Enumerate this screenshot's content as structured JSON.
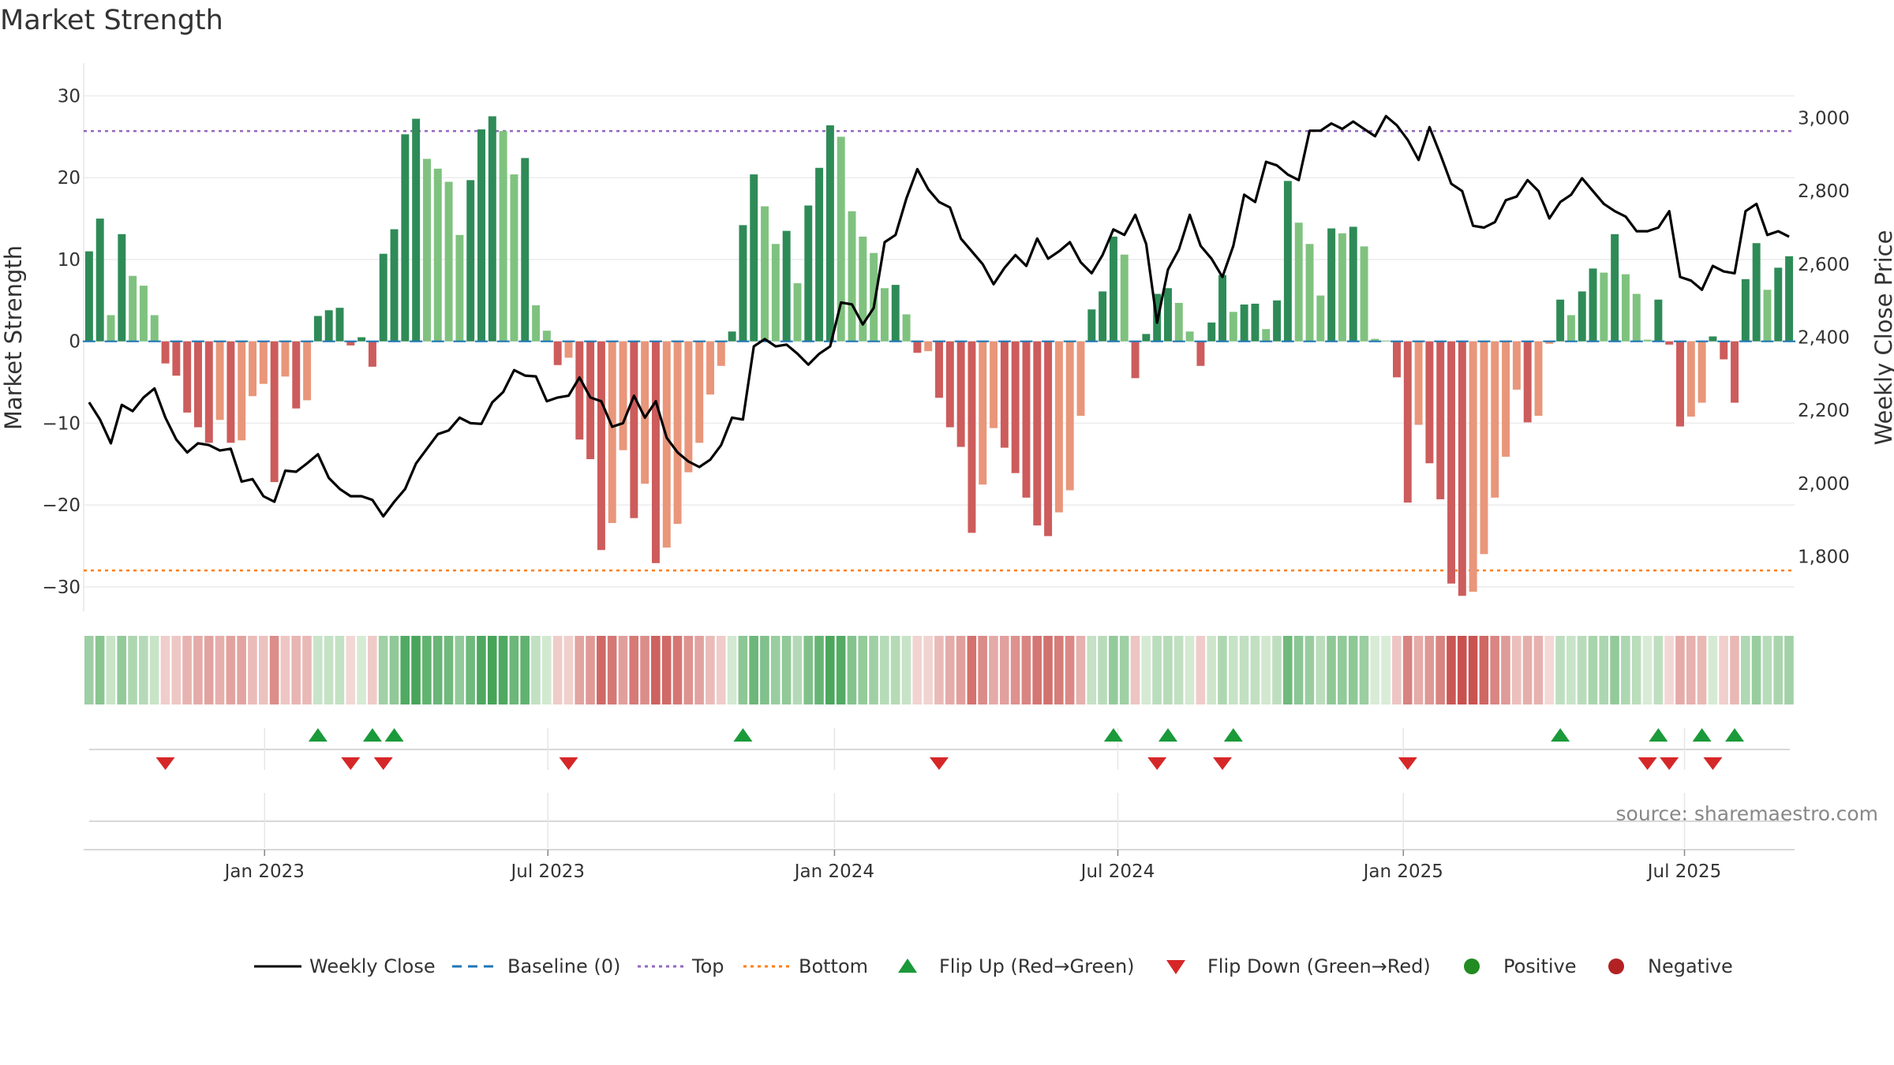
{
  "chart_data": {
    "type": "bar",
    "title": "Market Strength",
    "ylabel": "Market Strength",
    "y2label": "Weekly Close Price",
    "ylim": [
      -33,
      34
    ],
    "y2lim": [
      1650,
      3150
    ],
    "yticks": [
      30,
      20,
      10,
      0,
      -10,
      -20,
      -30
    ],
    "ytick_labels": [
      "30",
      "20",
      "10",
      "0",
      "−10",
      "−20",
      "−30"
    ],
    "y2ticks": [
      3000,
      2800,
      2600,
      2400,
      2200,
      2000,
      1800
    ],
    "y2tick_labels": [
      "3,000",
      "2,800",
      "2,600",
      "2,400",
      "2,200",
      "2,000",
      "1,800"
    ],
    "xtick_labels": [
      "Jan 2023",
      "Jul 2023",
      "Jan 2024",
      "Jul 2024",
      "Jan 2025",
      "Jul 2025"
    ],
    "xtick_positions": [
      16.6,
      42.6,
      68.9,
      94.9,
      121.1,
      146.9
    ],
    "top_line": 25.7,
    "bottom_line": -28,
    "baseline": 0,
    "strength": [
      11,
      15,
      3.2,
      13.1,
      8,
      6.8,
      3.2,
      -2.7,
      -4.2,
      -8.7,
      -10.5,
      -12.4,
      -9.6,
      -12.4,
      -12.1,
      -6.7,
      -5.2,
      -17.2,
      -4.3,
      -8.2,
      -7.2,
      3.1,
      3.8,
      4.1,
      -0.5,
      0.5,
      -3.1,
      10.7,
      13.7,
      25.3,
      27.2,
      22.3,
      21.1,
      19.5,
      13,
      19.7,
      25.9,
      27.5,
      25.7,
      20.4,
      22.4,
      4.4,
      1.3,
      -2.9,
      -2,
      -12,
      -14.4,
      -25.5,
      -22.2,
      -13.3,
      -21.6,
      -17.4,
      -27.1,
      -25.2,
      -22.3,
      -16,
      -12.4,
      -6.5,
      -3,
      1.2,
      14.2,
      20.4,
      16.5,
      11.9,
      13.5,
      7.1,
      16.6,
      21.2,
      26.4,
      25,
      15.9,
      12.8,
      10.8,
      6.5,
      6.9,
      3.3,
      -1.4,
      -1.2,
      -6.9,
      -10.5,
      -12.9,
      -23.4,
      -17.5,
      -10.6,
      -13,
      -16.1,
      -19.1,
      -22.5,
      -23.8,
      -20.9,
      -18.2,
      -9.1,
      3.9,
      6.1,
      12.8,
      10.6,
      -4.5,
      0.9,
      5.8,
      6.5,
      4.7,
      1.2,
      -3,
      2.3,
      8.1,
      3.6,
      4.5,
      4.6,
      1.5,
      5,
      19.6,
      14.5,
      11.9,
      5.6,
      13.8,
      13.2,
      14,
      11.6,
      0.3,
      0.1,
      -4.4,
      -19.7,
      -10.2,
      -14.9,
      -19.3,
      -29.6,
      -31.1,
      -30.6,
      -26,
      -19.1,
      -14.1,
      -5.9,
      -9.9,
      -9.1,
      -0.3,
      5.1,
      3.2,
      6.1,
      8.9,
      8.4,
      13.1,
      8.2,
      5.8,
      0.2,
      5.1,
      -0.4,
      -10.4,
      -9.2,
      -7.5,
      0.6,
      -2.2,
      -7.5,
      7.6,
      12,
      6.3,
      9,
      10.4
    ],
    "close": [
      2222,
      2175,
      2110,
      2215,
      2198,
      2235,
      2260,
      2180,
      2120,
      2085,
      2110,
      2105,
      2090,
      2095,
      2005,
      2012,
      1965,
      1950,
      2035,
      2032,
      2055,
      2080,
      2015,
      1985,
      1965,
      1965,
      1955,
      1910,
      1950,
      1985,
      2055,
      2095,
      2135,
      2145,
      2180,
      2165,
      2163,
      2222,
      2250,
      2310,
      2295,
      2293,
      2225,
      2235,
      2240,
      2290,
      2235,
      2225,
      2155,
      2165,
      2240,
      2180,
      2225,
      2125,
      2085,
      2060,
      2045,
      2065,
      2105,
      2180,
      2175,
      2375,
      2395,
      2375,
      2380,
      2355,
      2325,
      2355,
      2375,
      2495,
      2490,
      2435,
      2480,
      2660,
      2680,
      2780,
      2860,
      2805,
      2770,
      2755,
      2670,
      2635,
      2600,
      2545,
      2590,
      2625,
      2595,
      2670,
      2615,
      2635,
      2660,
      2605,
      2575,
      2625,
      2695,
      2680,
      2735,
      2655,
      2440,
      2585,
      2640,
      2735,
      2650,
      2615,
      2565,
      2650,
      2790,
      2770,
      2880,
      2870,
      2845,
      2830,
      2965,
      2965,
      2985,
      2970,
      2990,
      2970,
      2950,
      3005,
      2980,
      2940,
      2885,
      2975,
      2900,
      2820,
      2800,
      2705,
      2700,
      2715,
      2775,
      2785,
      2830,
      2800,
      2725,
      2770,
      2790,
      2835,
      2800,
      2765,
      2745,
      2730,
      2690,
      2690,
      2700,
      2745,
      2565,
      2555,
      2530,
      2595,
      2580,
      2575,
      2745,
      2765,
      2680,
      2690,
      2675
    ],
    "heat_scale": [
      -31,
      28
    ],
    "flip_up_weeks": [
      21,
      26,
      28,
      60,
      94,
      99,
      105,
      135,
      144,
      148,
      151
    ],
    "flip_down_weeks": [
      7,
      24,
      27,
      44,
      78,
      98,
      104,
      121,
      143,
      145,
      149
    ],
    "legend": [
      "Weekly Close",
      "Baseline (0)",
      "Top",
      "Bottom",
      "Flip Up (Red→Green)",
      "Flip Down (Green→Red)",
      "Positive",
      "Negative"
    ],
    "source": "source: sharemaestro.com"
  },
  "colors": {
    "positive_dark": "#2e8b57",
    "positive_light": "#7fc27f",
    "negative_dark": "#cd5c5c",
    "negative_light": "#e9967a",
    "close_line": "#000000",
    "baseline": "#1f77b4",
    "top": "#9467bd",
    "bottom": "#ff7f0e",
    "flip_up": "#1a9a3a",
    "flip_down": "#d62728",
    "positive_dot": "#228b22",
    "negative_dot": "#b22222"
  }
}
